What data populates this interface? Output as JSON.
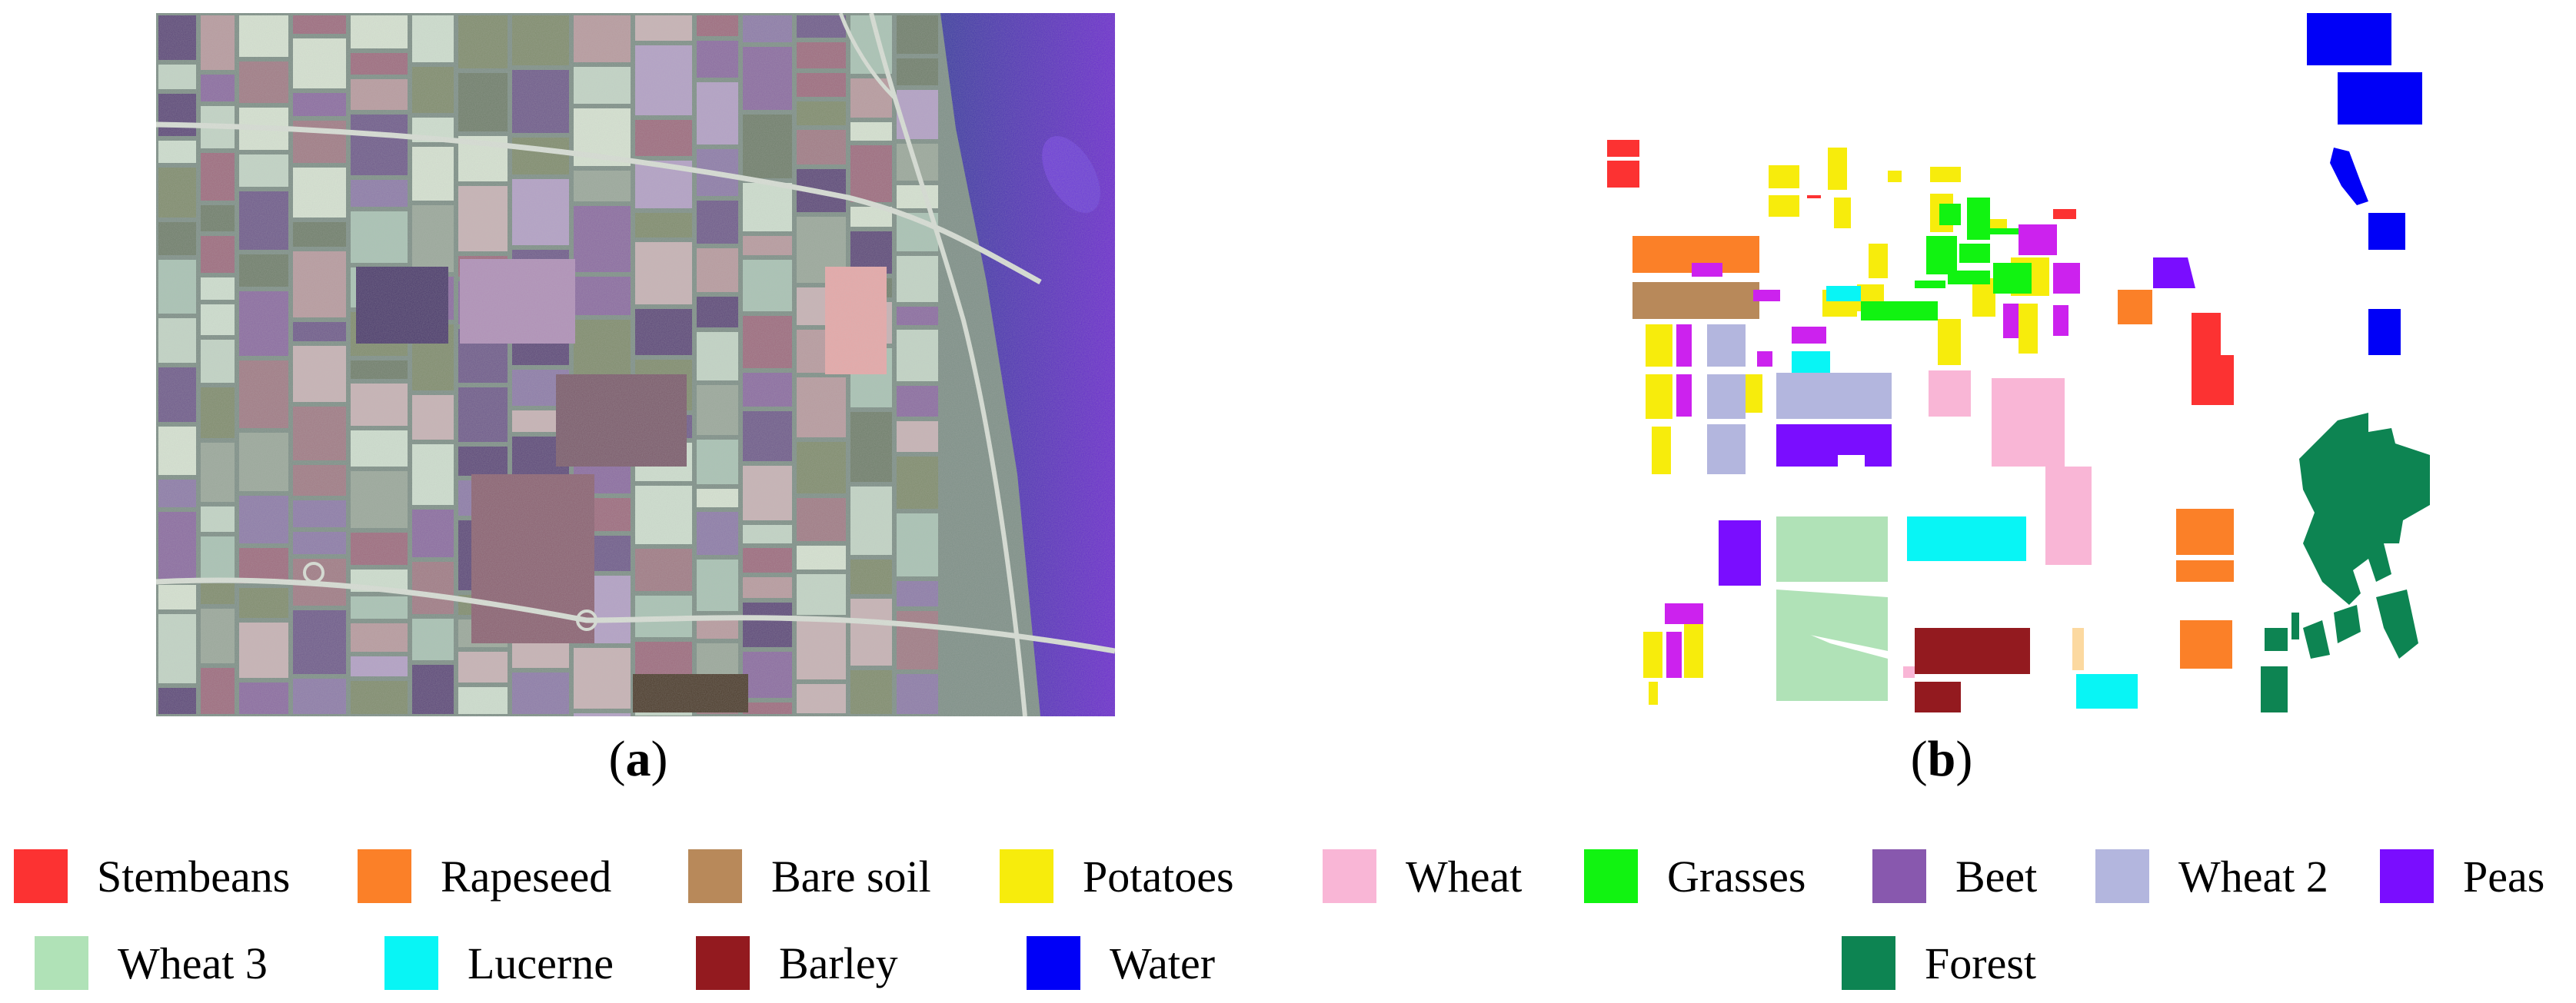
{
  "captions": {
    "a": "(a)",
    "a_letter": "a",
    "b": "(b)",
    "b_letter": "b"
  },
  "legend": [
    {
      "label": "Stembeans",
      "color": "#fc3232"
    },
    {
      "label": "Rapeseed",
      "color": "#fb8028"
    },
    {
      "label": "Bare soil",
      "color": "#b8895a"
    },
    {
      "label": "Potatoes",
      "color": "#f7ec0c"
    },
    {
      "label": "Wheat",
      "color": "#f9b6d6"
    },
    {
      "label": "Grasses",
      "color": "#11f311"
    },
    {
      "label": "Beet",
      "color": "#8858ae"
    },
    {
      "label": "Wheat 2",
      "color": "#b3b6de"
    },
    {
      "label": "Peas",
      "color": "#7a0dff"
    },
    {
      "label": "Wheat 3",
      "color": "#b0e2b7"
    },
    {
      "label": "Lucerne",
      "color": "#08f5f5"
    },
    {
      "label": "Barley",
      "color": "#931a1f"
    },
    {
      "label": "Water",
      "color": "#0000f7"
    },
    {
      "label": "Forest",
      "color": "#0d8452"
    }
  ]
}
